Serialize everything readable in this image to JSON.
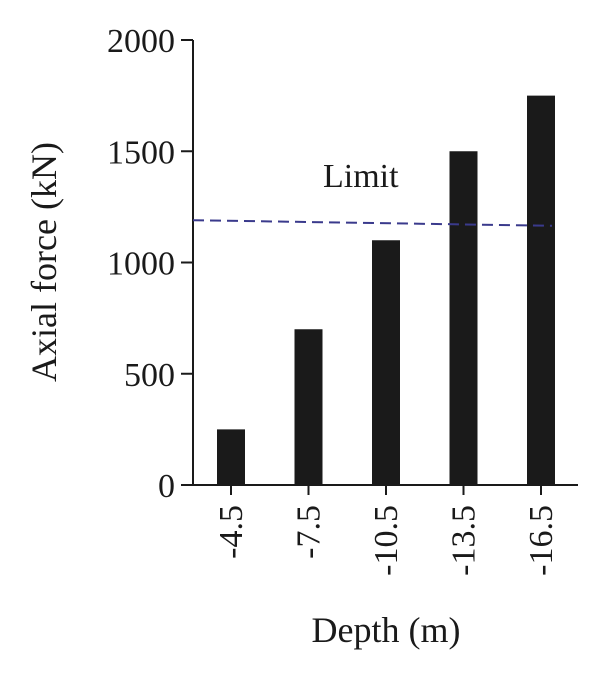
{
  "chart_data": {
    "type": "bar",
    "categories": [
      "-4.5",
      "-7.5",
      "-10.5",
      "-13.5",
      "-16.5"
    ],
    "values": [
      250,
      700,
      1100,
      1500,
      1750
    ],
    "xlabel": "Depth (m)",
    "ylabel": "Axial force (kN)",
    "ylim": [
      0,
      2000
    ],
    "yticks": [
      0,
      500,
      1000,
      1500,
      2000
    ],
    "grid": false,
    "bar_color": "#1a1a1a",
    "limit_line": {
      "label": "Limit",
      "value_start": 1190,
      "value_end": 1165,
      "color": "#3a3a8c",
      "style": "dashed"
    }
  }
}
